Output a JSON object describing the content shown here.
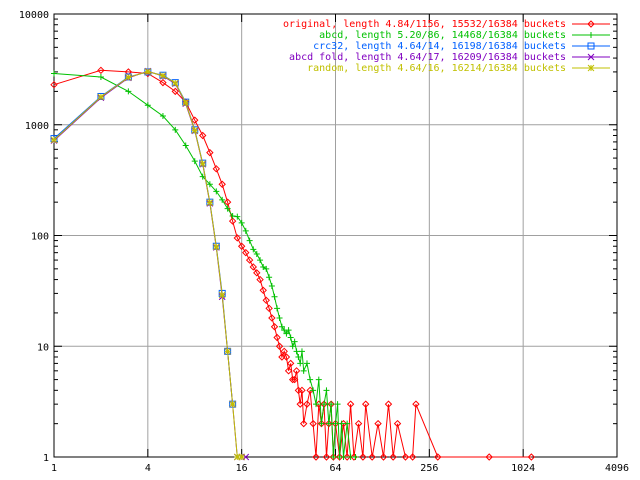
{
  "chart_data": {
    "type": "line",
    "xscale": "log2",
    "yscale": "log10",
    "xlim": [
      1,
      4096
    ],
    "ylim": [
      1,
      10000
    ],
    "x_ticks": [
      1,
      4,
      16,
      64,
      256,
      1024,
      4096
    ],
    "x_tick_labels": [
      "1",
      "4",
      "16",
      "64",
      "256",
      "1024",
      "4096"
    ],
    "y_ticks": [
      1,
      10,
      100,
      1000,
      10000
    ],
    "y_tick_labels": [
      "1",
      "10",
      "100",
      "1000",
      "10000"
    ],
    "grid": true,
    "legend_position": "top-right",
    "series": [
      {
        "name": "original, length 4.84/1156, 15532/16384 buckets",
        "color": "#ff0000",
        "marker": "diamond",
        "points": [
          [
            1,
            2300
          ],
          [
            2,
            3100
          ],
          [
            3,
            3000
          ],
          [
            4,
            2900
          ],
          [
            5,
            2400
          ],
          [
            6,
            2000
          ],
          [
            7,
            1600
          ],
          [
            8,
            1100
          ],
          [
            9,
            800
          ],
          [
            10,
            560
          ],
          [
            11,
            400
          ],
          [
            12,
            290
          ],
          [
            13,
            200
          ],
          [
            14,
            135
          ],
          [
            15,
            95
          ],
          [
            16,
            80
          ],
          [
            17,
            70
          ],
          [
            18,
            60
          ],
          [
            19,
            52
          ],
          [
            20,
            46
          ],
          [
            21,
            40
          ],
          [
            22,
            32
          ],
          [
            23,
            26
          ],
          [
            24,
            22
          ],
          [
            25,
            18
          ],
          [
            26,
            15
          ],
          [
            27,
            12
          ],
          [
            28,
            10
          ],
          [
            29,
            8
          ],
          [
            30,
            9
          ],
          [
            31,
            8
          ],
          [
            32,
            6
          ],
          [
            33,
            7
          ],
          [
            34,
            5
          ],
          [
            35,
            5
          ],
          [
            36,
            6
          ],
          [
            37,
            4
          ],
          [
            38,
            3
          ],
          [
            39,
            4
          ],
          [
            40,
            2
          ],
          [
            42,
            3
          ],
          [
            44,
            4
          ],
          [
            46,
            2
          ],
          [
            48,
            1
          ],
          [
            50,
            3
          ],
          [
            52,
            2
          ],
          [
            54,
            3
          ],
          [
            56,
            1
          ],
          [
            58,
            2
          ],
          [
            60,
            3
          ],
          [
            62,
            1
          ],
          [
            64,
            2
          ],
          [
            68,
            1
          ],
          [
            72,
            2
          ],
          [
            76,
            1
          ],
          [
            80,
            3
          ],
          [
            84,
            1
          ],
          [
            90,
            2
          ],
          [
            96,
            1
          ],
          [
            100,
            3
          ],
          [
            110,
            1
          ],
          [
            120,
            2
          ],
          [
            130,
            1
          ],
          [
            140,
            3
          ],
          [
            150,
            1
          ],
          [
            160,
            2
          ],
          [
            180,
            1
          ],
          [
            200,
            1
          ],
          [
            210,
            3
          ],
          [
            290,
            1
          ],
          [
            620,
            1
          ],
          [
            1156,
            1
          ]
        ]
      },
      {
        "name": "abcd, length 5.20/86, 14468/16384 buckets",
        "color": "#00c000",
        "marker": "plus",
        "points": [
          [
            1,
            2900
          ],
          [
            2,
            2700
          ],
          [
            3,
            2000
          ],
          [
            4,
            1500
          ],
          [
            5,
            1200
          ],
          [
            6,
            900
          ],
          [
            7,
            650
          ],
          [
            8,
            470
          ],
          [
            9,
            340
          ],
          [
            10,
            290
          ],
          [
            11,
            250
          ],
          [
            12,
            210
          ],
          [
            13,
            175
          ],
          [
            14,
            150
          ],
          [
            15,
            148
          ],
          [
            16,
            130
          ],
          [
            17,
            110
          ],
          [
            18,
            90
          ],
          [
            19,
            75
          ],
          [
            20,
            68
          ],
          [
            21,
            60
          ],
          [
            22,
            52
          ],
          [
            23,
            50
          ],
          [
            24,
            42
          ],
          [
            25,
            35
          ],
          [
            26,
            28
          ],
          [
            27,
            22
          ],
          [
            28,
            18
          ],
          [
            29,
            15
          ],
          [
            30,
            14
          ],
          [
            31,
            13
          ],
          [
            32,
            14
          ],
          [
            33,
            12
          ],
          [
            34,
            10
          ],
          [
            35,
            11
          ],
          [
            36,
            9
          ],
          [
            37,
            8
          ],
          [
            38,
            7
          ],
          [
            39,
            9
          ],
          [
            40,
            6
          ],
          [
            42,
            7
          ],
          [
            44,
            5
          ],
          [
            46,
            4
          ],
          [
            48,
            3
          ],
          [
            50,
            5
          ],
          [
            52,
            2
          ],
          [
            54,
            3
          ],
          [
            56,
            4
          ],
          [
            58,
            2
          ],
          [
            60,
            3
          ],
          [
            62,
            1
          ],
          [
            64,
            2
          ],
          [
            66,
            3
          ],
          [
            68,
            1
          ],
          [
            70,
            2
          ],
          [
            72,
            1
          ],
          [
            76,
            2
          ],
          [
            80,
            1
          ],
          [
            86,
            1
          ]
        ]
      },
      {
        "name": "crc32, length 4.64/14, 16198/16384 buckets",
        "color": "#0060ff",
        "marker": "square",
        "points": [
          [
            1,
            750
          ],
          [
            2,
            1800
          ],
          [
            3,
            2700
          ],
          [
            4,
            3000
          ],
          [
            5,
            2800
          ],
          [
            6,
            2400
          ],
          [
            7,
            1600
          ],
          [
            8,
            900
          ],
          [
            9,
            450
          ],
          [
            10,
            200
          ],
          [
            11,
            80
          ],
          [
            12,
            30
          ],
          [
            13,
            9
          ],
          [
            14,
            3
          ]
        ]
      },
      {
        "name": "abcd fold, length 4.64/17, 16209/16384 buckets",
        "color": "#8000c0",
        "marker": "x",
        "points": [
          [
            1,
            720
          ],
          [
            2,
            1750
          ],
          [
            3,
            2650
          ],
          [
            4,
            3050
          ],
          [
            5,
            2750
          ],
          [
            6,
            2350
          ],
          [
            7,
            1550
          ],
          [
            8,
            880
          ],
          [
            9,
            440
          ],
          [
            10,
            195
          ],
          [
            11,
            78
          ],
          [
            12,
            28
          ],
          [
            13,
            9
          ],
          [
            14,
            3
          ],
          [
            15,
            1
          ],
          [
            16,
            1
          ],
          [
            17,
            1
          ]
        ]
      },
      {
        "name": "random, length 4.64/16, 16214/16384 buckets",
        "color": "#c0c000",
        "marker": "star",
        "points": [
          [
            1,
            730
          ],
          [
            2,
            1780
          ],
          [
            3,
            2680
          ],
          [
            4,
            3020
          ],
          [
            5,
            2780
          ],
          [
            6,
            2380
          ],
          [
            7,
            1580
          ],
          [
            8,
            890
          ],
          [
            9,
            445
          ],
          [
            10,
            198
          ],
          [
            11,
            79
          ],
          [
            12,
            29
          ],
          [
            13,
            9
          ],
          [
            14,
            3
          ],
          [
            15,
            1
          ],
          [
            16,
            1
          ]
        ]
      }
    ]
  }
}
